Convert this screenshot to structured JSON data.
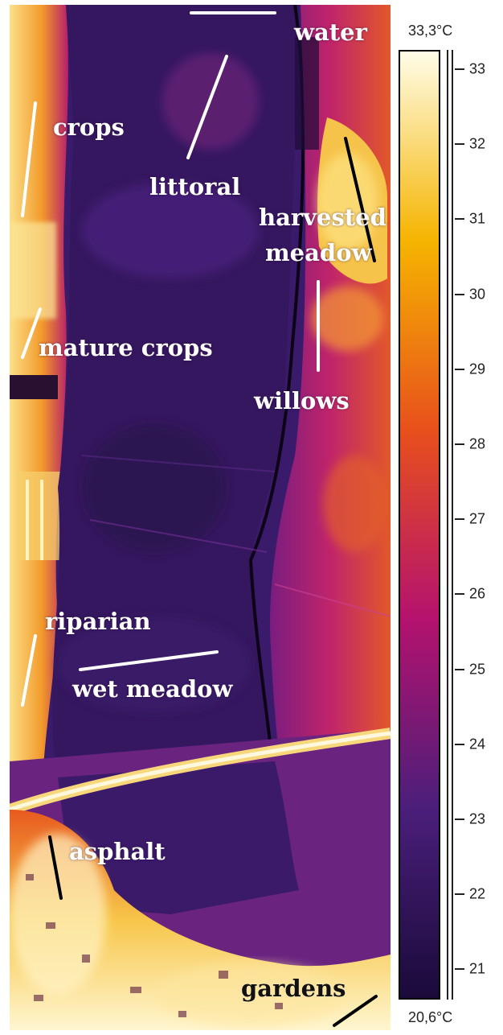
{
  "labels": {
    "water": "water",
    "crops": "crops",
    "littoral": "littoral",
    "harvested": "harvested",
    "meadow": "meadow",
    "mature_crops": "mature crops",
    "willows": "willows",
    "riparian": "riparian",
    "wet_meadow": "wet meadow",
    "asphalt": "asphalt",
    "gardens": "gardens"
  },
  "colorbar": {
    "max_label": "33,3°C",
    "min_label": "20,6°C",
    "ticks": [
      "33",
      "32",
      "31",
      "30",
      "29",
      "28",
      "27",
      "26",
      "25",
      "24",
      "23",
      "22",
      "21"
    ]
  },
  "colors": {
    "cold": "#1a0a3a",
    "cool": "#4a1f7a",
    "mid": "#b4126e",
    "warm": "#e8501c",
    "hot": "#f5b400",
    "hottest": "#fffde8"
  }
}
